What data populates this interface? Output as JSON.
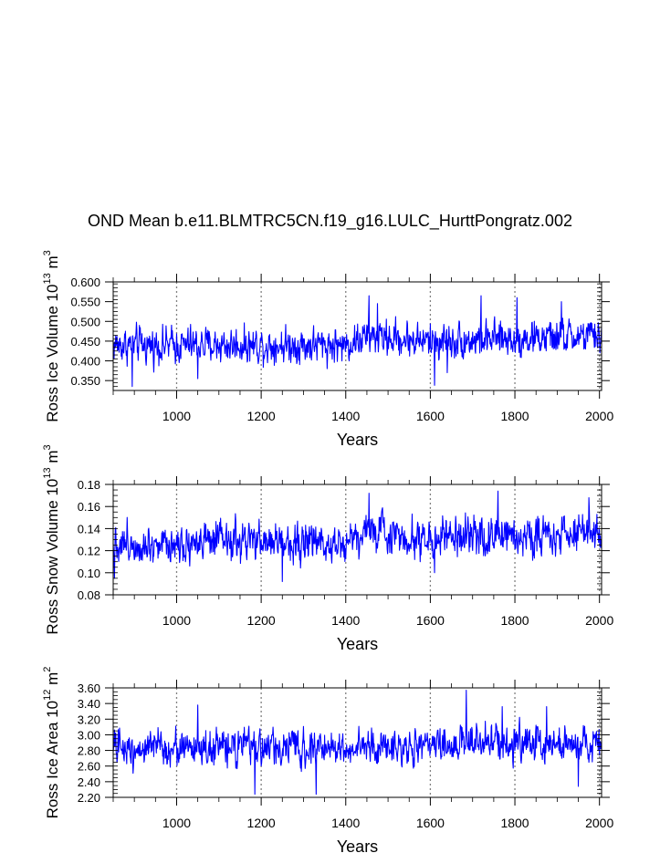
{
  "title": "OND Mean b.e11.BLMTRC5CN.f19_g16.LULC_HurttPongratz.002",
  "line_color": "#0000ff",
  "gridline_color": "#808080",
  "chart_data": [
    {
      "type": "line",
      "ylabel_main": "Ross Ice Volume 10",
      "ylabel_exp": "13",
      "ylabel_unit": " m",
      "ylabel_unit_exp": "3",
      "xlabel": "Years",
      "xlim": [
        850,
        2005
      ],
      "ylim": [
        0.325,
        0.6
      ],
      "xticks": [
        1000,
        1200,
        1400,
        1600,
        1800,
        2000
      ],
      "xtick_labels": [
        "1000",
        "1200",
        "1400",
        "1600",
        "1800",
        "2000"
      ],
      "yticks": [
        0.35,
        0.4,
        0.45,
        0.5,
        0.55,
        0.6
      ],
      "ytick_labels": [
        "0.350",
        "0.400",
        "0.450",
        "0.500",
        "0.550",
        "0.600"
      ],
      "yminor_step": 0.01,
      "gridlines_x": [
        1000,
        1200,
        1400,
        1600,
        1800,
        2000
      ],
      "series": [
        {
          "name": "Ross Ice Volume",
          "mean": 0.448,
          "amplitude": 0.036,
          "trend_by_year": [
            [
              850,
              0.44
            ],
            [
              1400,
              0.44
            ],
            [
              1450,
              0.462
            ],
            [
              1600,
              0.45
            ],
            [
              2005,
              0.462
            ]
          ],
          "spikes": [
            [
              1455,
              0.565
            ],
            [
              1475,
              0.545
            ],
            [
              1720,
              0.565
            ],
            [
              1805,
              0.56
            ],
            [
              1910,
              0.55
            ],
            [
              895,
              0.335
            ],
            [
              1050,
              0.355
            ],
            [
              1610,
              0.338
            ],
            [
              1640,
              0.37
            ]
          ]
        }
      ]
    },
    {
      "type": "line",
      "ylabel_main": "Ross Snow Volume 10",
      "ylabel_exp": "13",
      "ylabel_unit": " m",
      "ylabel_unit_exp": "3",
      "xlabel": "Years",
      "xlim": [
        850,
        2005
      ],
      "ylim": [
        0.08,
        0.18
      ],
      "xticks": [
        1000,
        1200,
        1400,
        1600,
        1800,
        2000
      ],
      "xtick_labels": [
        "1000",
        "1200",
        "1400",
        "1600",
        "1800",
        "2000"
      ],
      "yticks": [
        0.08,
        0.1,
        0.12,
        0.14,
        0.16,
        0.18
      ],
      "ytick_labels": [
        "0.08",
        "0.10",
        "0.12",
        "0.14",
        "0.16",
        "0.18"
      ],
      "yminor_step": 0.005,
      "gridlines_x": [
        1000,
        1200,
        1400,
        1600,
        1800,
        2000
      ],
      "series": [
        {
          "name": "Ross Snow Volume",
          "mean": 0.13,
          "amplitude": 0.014,
          "trend_by_year": [
            [
              850,
              0.127
            ],
            [
              1400,
              0.128
            ],
            [
              1450,
              0.138
            ],
            [
              1600,
              0.13
            ],
            [
              2005,
              0.137
            ]
          ],
          "spikes": [
            [
              853,
              0.095
            ],
            [
              1250,
              0.092
            ],
            [
              1455,
              0.172
            ],
            [
              1760,
              0.174
            ],
            [
              1975,
              0.168
            ],
            [
              1610,
              0.1
            ]
          ]
        }
      ]
    },
    {
      "type": "line",
      "ylabel_main": "Ross Ice Area 10",
      "ylabel_exp": "12",
      "ylabel_unit": " m",
      "ylabel_unit_exp": "2",
      "xlabel": "Years",
      "xlim": [
        850,
        2005
      ],
      "ylim": [
        2.2,
        3.6
      ],
      "xticks": [
        1000,
        1200,
        1400,
        1600,
        1800,
        2000
      ],
      "xtick_labels": [
        "1000",
        "1200",
        "1400",
        "1600",
        "1800",
        "2000"
      ],
      "yticks": [
        2.2,
        2.4,
        2.6,
        2.8,
        3.0,
        3.2,
        3.4,
        3.6
      ],
      "ytick_labels": [
        "2.20",
        "2.40",
        "2.60",
        "2.80",
        "3.00",
        "3.20",
        "3.40",
        "3.60"
      ],
      "yminor_step": 0.05,
      "gridlines_x": [
        1000,
        1200,
        1400,
        1600,
        1800,
        2000
      ],
      "series": [
        {
          "name": "Ross Ice Area",
          "mean": 2.84,
          "amplitude": 0.18,
          "trend_by_year": [
            [
              850,
              2.83
            ],
            [
              1600,
              2.84
            ],
            [
              1700,
              2.92
            ],
            [
              2005,
              2.87
            ]
          ],
          "spikes": [
            [
              1050,
              3.38
            ],
            [
              1185,
              2.24
            ],
            [
              1330,
              2.24
            ],
            [
              1685,
              3.57
            ],
            [
              1770,
              3.36
            ],
            [
              1875,
              3.36
            ],
            [
              1950,
              2.34
            ]
          ]
        }
      ]
    }
  ]
}
